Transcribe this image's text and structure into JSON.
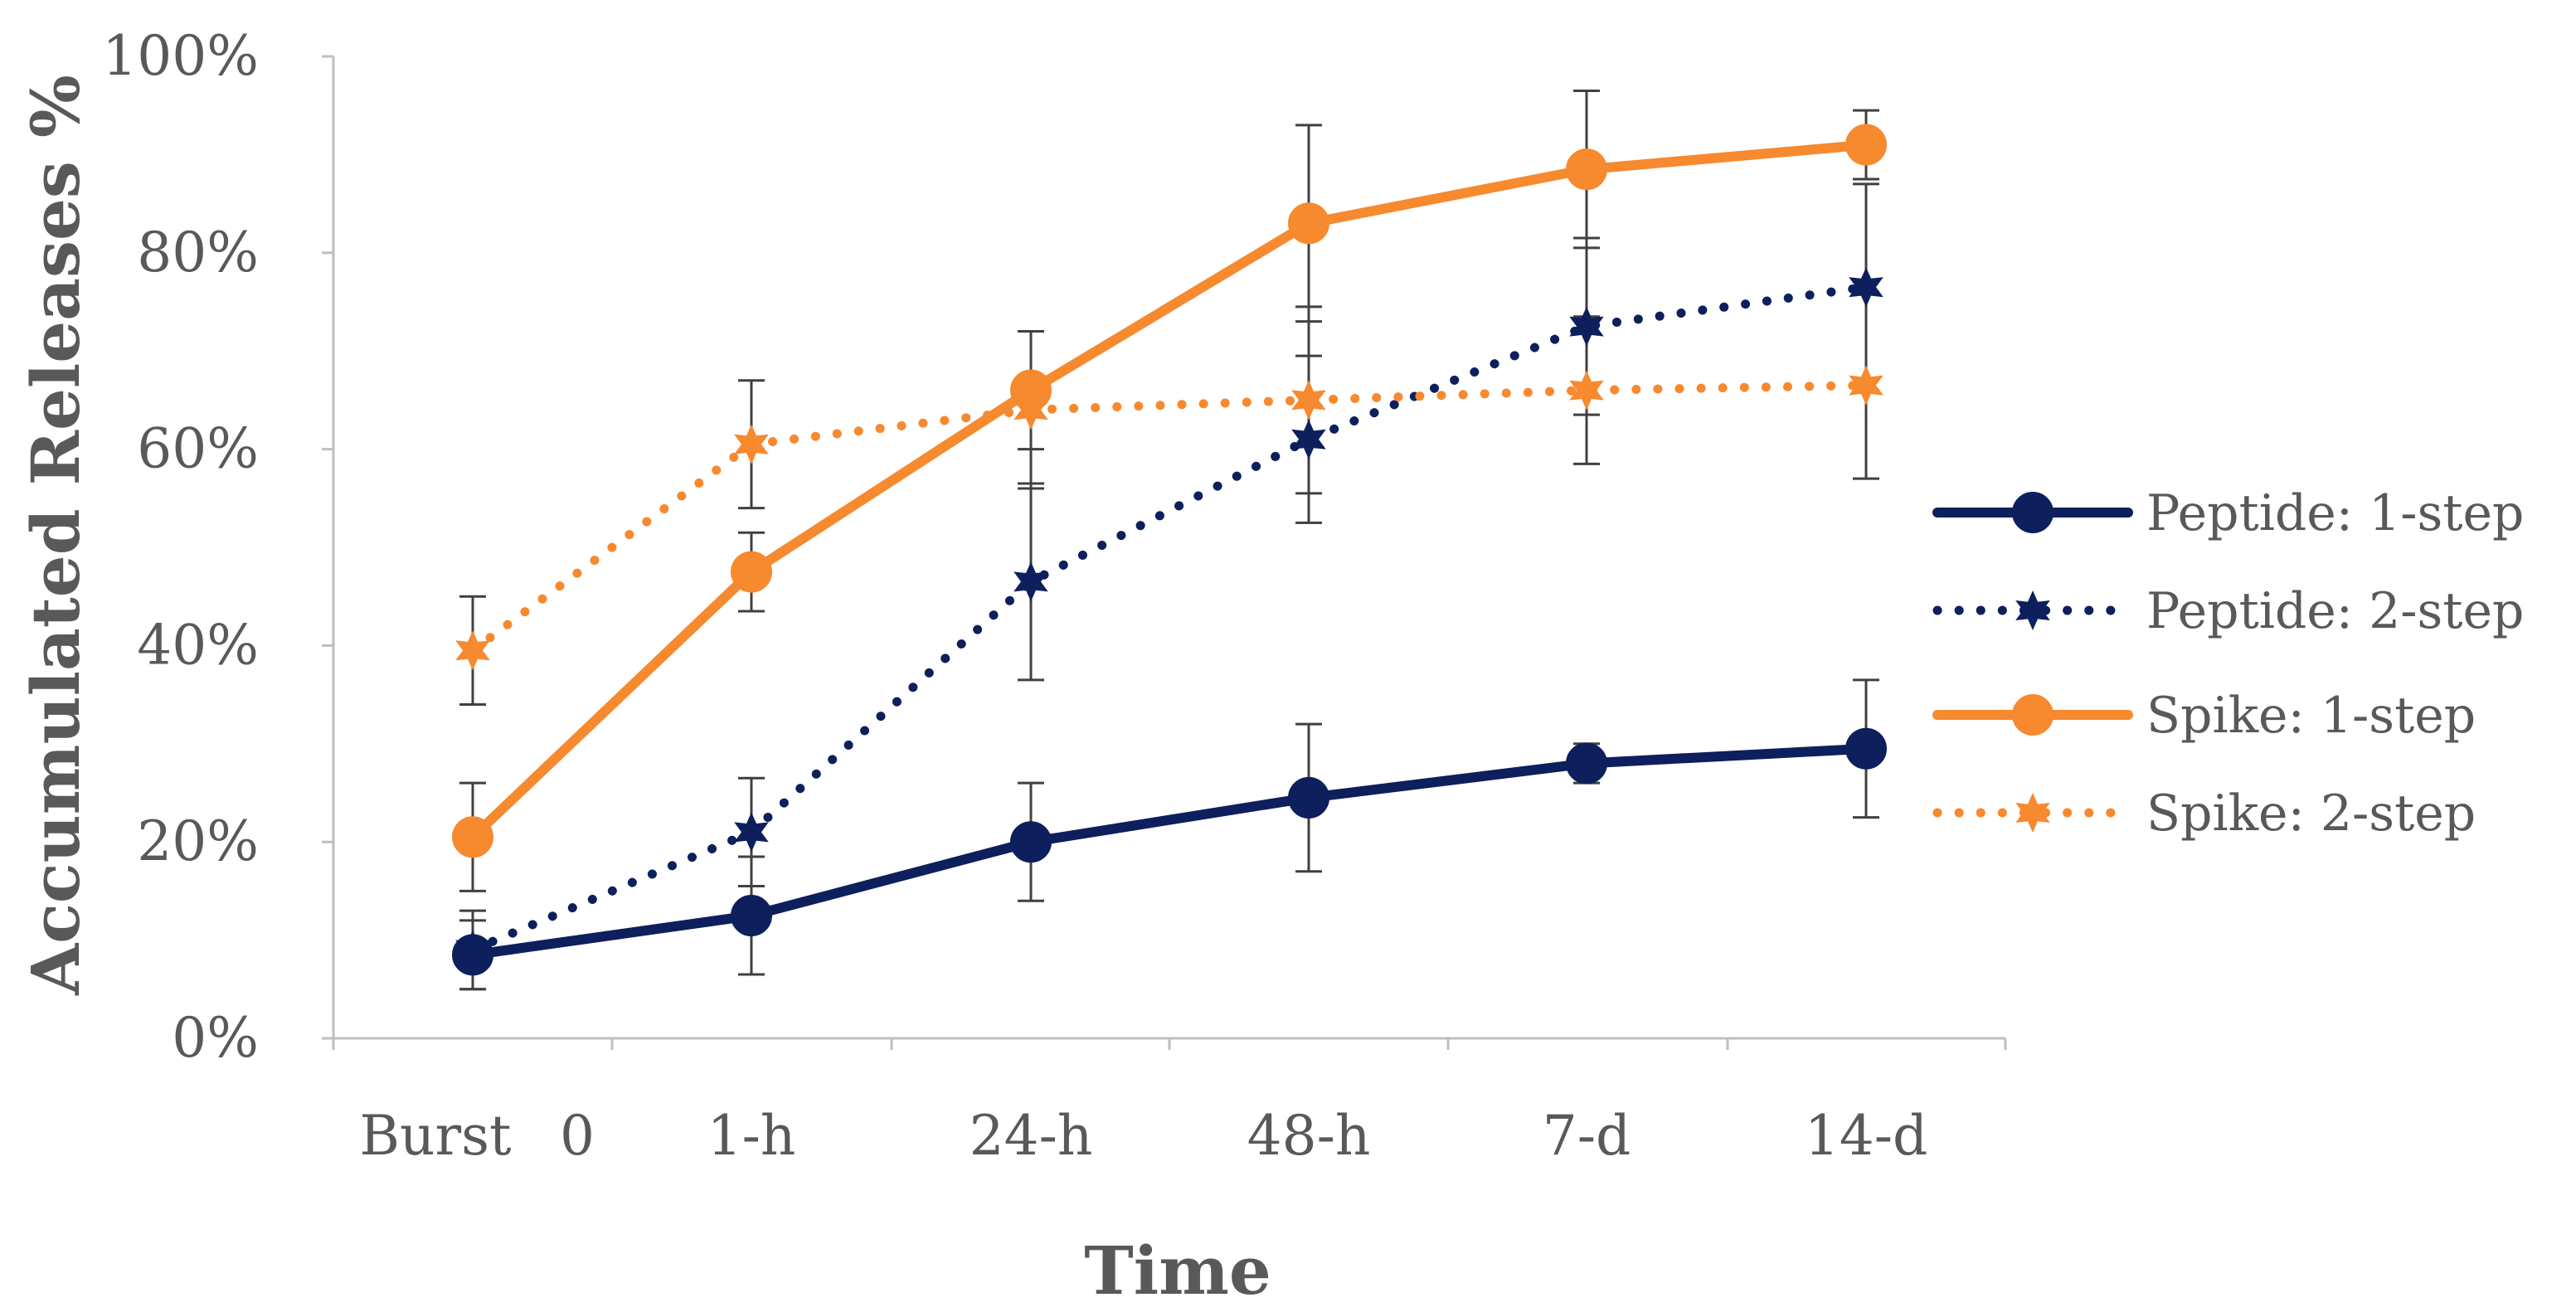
{
  "chart_data": {
    "type": "line",
    "title": "",
    "xlabel": "Time",
    "ylabel": "Accumulated Releases %",
    "categories": [
      "Burst",
      "1-h",
      "24-h",
      "48-h",
      "7-d",
      "14-d"
    ],
    "origin_label": "0",
    "ylim": [
      0,
      100
    ],
    "yticks": [
      0,
      20,
      40,
      60,
      80,
      100
    ],
    "ytick_labels": [
      "0%",
      "20%",
      "40%",
      "60%",
      "80%",
      "100%"
    ],
    "grid": false,
    "legend_position": "right",
    "series": [
      {
        "name": "Peptide: 1-step",
        "color": "#0d1f5c",
        "line_style": "solid",
        "marker": "circle",
        "values": [
          8.5,
          12.5,
          20,
          24.5,
          28,
          29.5
        ],
        "errors": [
          3.5,
          6,
          6,
          7.5,
          2,
          7
        ]
      },
      {
        "name": "Peptide: 2-step",
        "color": "#0d1f5c",
        "line_style": "dotted",
        "marker": "star",
        "values": [
          9,
          21,
          46.5,
          61,
          72.5,
          76.5
        ],
        "errors": [
          4,
          5.5,
          10,
          8.5,
          9,
          10.5
        ]
      },
      {
        "name": "Spike: 1-step",
        "color": "#f7892f",
        "line_style": "solid",
        "marker": "circle",
        "values": [
          20.5,
          47.5,
          66,
          83,
          88.5,
          91
        ],
        "errors": [
          5.5,
          4,
          6,
          10,
          8,
          3.5
        ]
      },
      {
        "name": "Spike: 2-step",
        "color": "#f7892f",
        "line_style": "dotted",
        "marker": "star",
        "values": [
          39.5,
          60.5,
          64,
          65,
          66,
          66.5
        ],
        "errors": [
          5.5,
          6.5,
          8,
          9.5,
          7.5,
          9.5
        ]
      }
    ]
  }
}
